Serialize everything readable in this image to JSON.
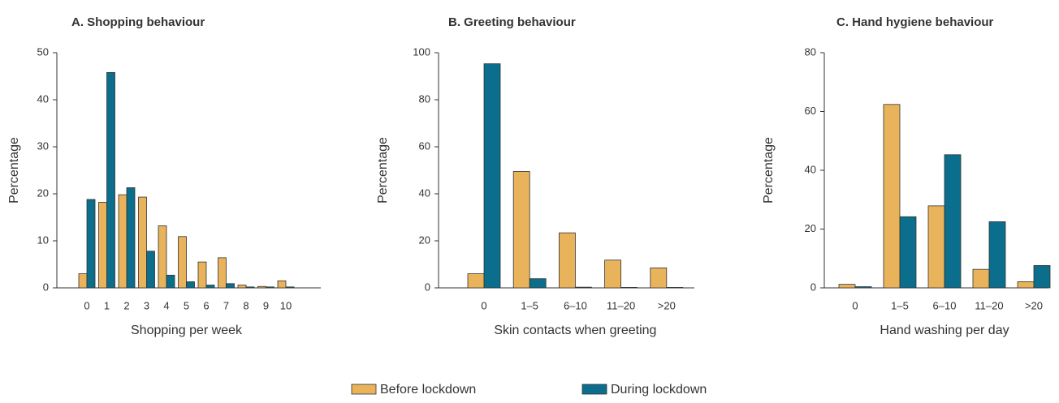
{
  "chart_data": [
    {
      "type": "bar",
      "title": "A. Shopping behaviour",
      "y_label": "Percentage",
      "x_label": "Shopping per week",
      "categories": [
        "0",
        "1",
        "2",
        "3",
        "4",
        "5",
        "6",
        "7",
        "8",
        "9",
        "10"
      ],
      "series": [
        {
          "name": "Before lockdown",
          "color": "#e8b35a",
          "values": [
            3,
            18.2,
            19.8,
            19.3,
            13.2,
            10.9,
            5.5,
            6.4,
            0.6,
            0.3,
            1.5
          ]
        },
        {
          "name": "During lockdown",
          "color": "#0b6e8c",
          "values": [
            18.8,
            45.8,
            21.3,
            7.8,
            2.7,
            1.3,
            0.6,
            0.9,
            0.2,
            0.2,
            0.2
          ]
        }
      ],
      "ylim": [
        0,
        50
      ],
      "yticks": [
        0,
        10,
        20,
        30,
        40,
        50
      ]
    },
    {
      "type": "bar",
      "title": "B. Greeting behaviour",
      "y_label": "Percentage",
      "x_label": "Skin contacts when greeting",
      "categories": [
        "0",
        "1–5",
        "6–10",
        "11–20",
        ">20"
      ],
      "series": [
        {
          "name": "Before lockdown",
          "color": "#e8b35a",
          "values": [
            6,
            49.5,
            23.4,
            11.8,
            8.5
          ]
        },
        {
          "name": "During lockdown",
          "color": "#0b6e8c",
          "values": [
            95.3,
            3.9,
            0.3,
            0.2,
            0.2
          ]
        }
      ],
      "ylim": [
        0,
        100
      ],
      "yticks": [
        0,
        20,
        40,
        60,
        80,
        100
      ]
    },
    {
      "type": "bar",
      "title": "C. Hand hygiene behaviour",
      "y_label": "Percentage",
      "x_label": "Hand washing per day",
      "categories": [
        "0",
        "1–5",
        "6–10",
        "11–20",
        ">20"
      ],
      "series": [
        {
          "name": "Before lockdown",
          "color": "#e8b35a",
          "values": [
            1.2,
            62.4,
            27.9,
            6.3,
            2.1
          ]
        },
        {
          "name": "During lockdown",
          "color": "#0b6e8c",
          "values": [
            0.4,
            24.2,
            45.3,
            22.5,
            7.6
          ]
        }
      ],
      "ylim": [
        0,
        80
      ],
      "yticks": [
        0,
        20,
        40,
        60,
        80
      ]
    }
  ]
}
